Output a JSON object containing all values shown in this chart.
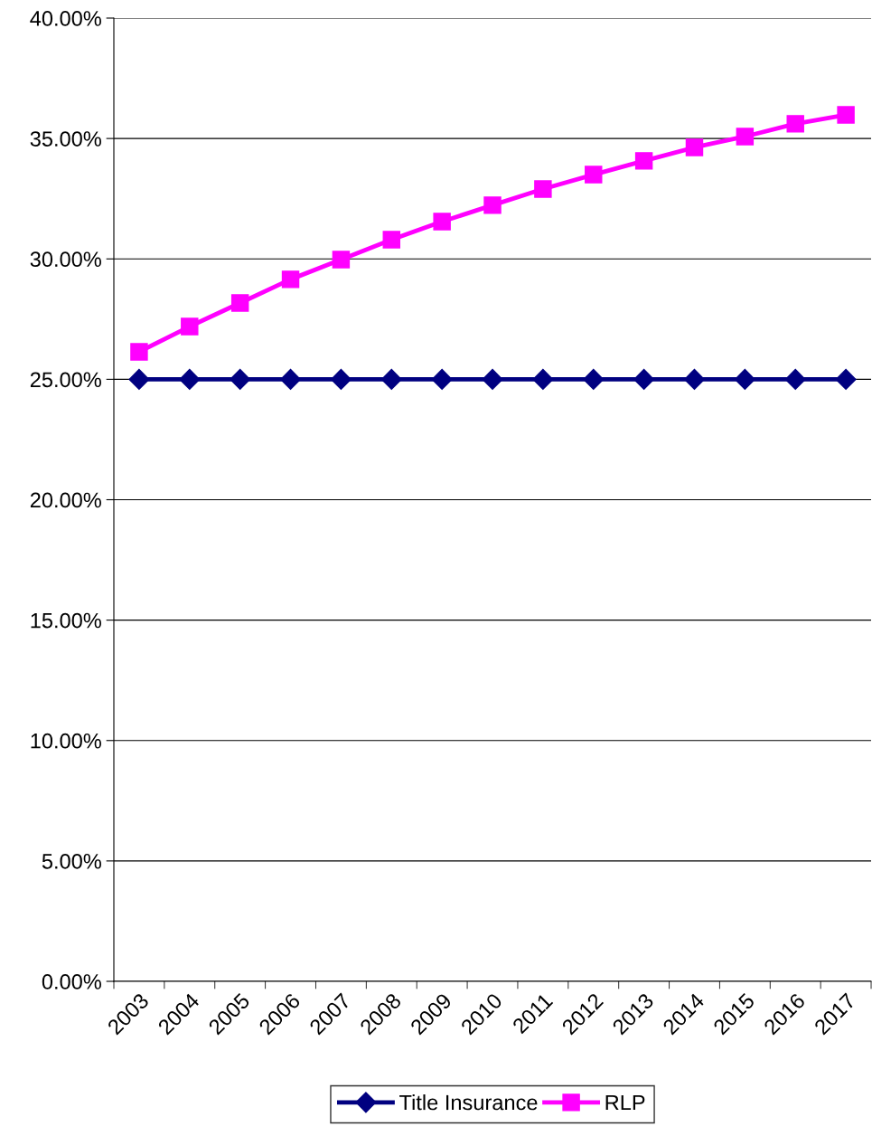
{
  "chart_data": {
    "type": "line",
    "categories": [
      "2003",
      "2004",
      "2005",
      "2006",
      "2007",
      "2008",
      "2009",
      "2010",
      "2011",
      "2012",
      "2013",
      "2014",
      "2015",
      "2016",
      "2017"
    ],
    "series": [
      {
        "name": "Title Insurance",
        "color": "#000080",
        "marker": "diamond",
        "values": [
          25,
          25,
          25,
          25,
          25,
          25,
          25,
          25,
          25,
          25,
          25,
          25,
          25,
          25,
          25
        ]
      },
      {
        "name": "RLP",
        "color": "#ff00ff",
        "marker": "square",
        "values": [
          26.14,
          27.19,
          28.17,
          29.15,
          29.97,
          30.8,
          31.55,
          32.23,
          32.9,
          33.5,
          34.07,
          34.63,
          35.08,
          35.61,
          35.98
        ]
      }
    ],
    "ylim": [
      0,
      40
    ],
    "yticks": [
      {
        "value": 0,
        "label": "0.00%"
      },
      {
        "value": 5,
        "label": "5.00%"
      },
      {
        "value": 10,
        "label": "10.00%"
      },
      {
        "value": 15,
        "label": "15.00%"
      },
      {
        "value": 20,
        "label": "20.00%"
      },
      {
        "value": 25,
        "label": "25.00%"
      },
      {
        "value": 30,
        "label": "30.00%"
      },
      {
        "value": 35,
        "label": "35.00%"
      },
      {
        "value": 40,
        "label": "40.00%"
      }
    ],
    "grid": "y",
    "legend": "bottom",
    "line_style": "solid"
  }
}
